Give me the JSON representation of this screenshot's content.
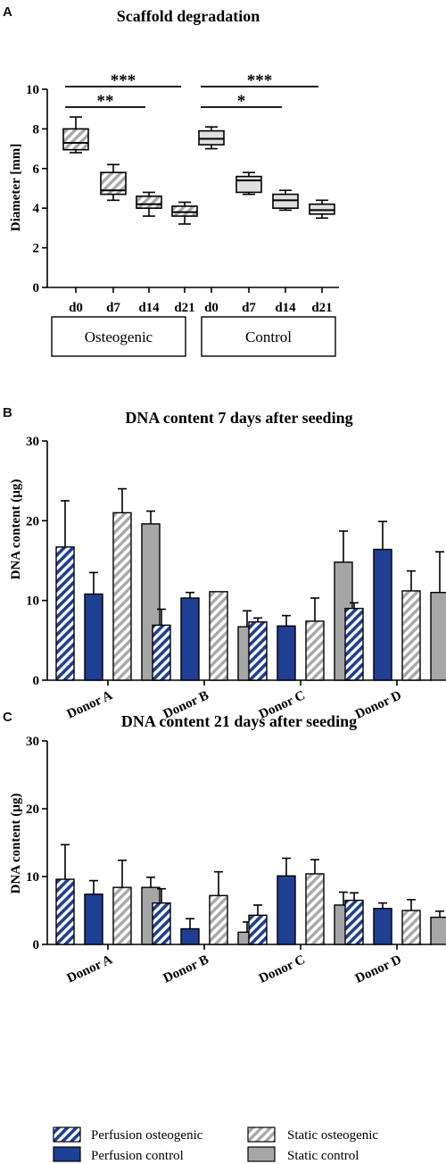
{
  "colors": {
    "perfusion": "#1f3f94",
    "static_gray": "#a6a6a6",
    "box_gray": "#a8a8a8",
    "box_light": "#e0e0e0"
  },
  "legend": {
    "items": [
      {
        "label": "Perfusion osteogenic",
        "style": "hatch-blue"
      },
      {
        "label": "Static osteogenic",
        "style": "hatch-gray"
      },
      {
        "label": "Perfusion control",
        "style": "solid-blue"
      },
      {
        "label": "Static control",
        "style": "solid-gray"
      }
    ]
  },
  "chart_data": [
    {
      "panel": "A",
      "type": "box",
      "title": "Scaffold degradation",
      "ylabel": "Diameter [mm]",
      "ylim": [
        0,
        10
      ],
      "yticks": [
        0,
        2,
        4,
        6,
        8,
        10
      ],
      "categories": [
        "d0",
        "d7",
        "d14",
        "d21",
        "d0",
        "d7",
        "d14",
        "d21"
      ],
      "groups": [
        {
          "label": "Osteogenic",
          "span": [
            0,
            3
          ]
        },
        {
          "label": "Control",
          "span": [
            4,
            7
          ]
        }
      ],
      "boxes": [
        {
          "min": 6.8,
          "q1": 6.95,
          "median": 7.3,
          "q3": 8.0,
          "max": 8.6,
          "style": "hatch"
        },
        {
          "min": 4.4,
          "q1": 4.7,
          "median": 4.9,
          "q3": 5.8,
          "max": 6.2,
          "style": "hatch"
        },
        {
          "min": 3.6,
          "q1": 4.0,
          "median": 4.2,
          "q3": 4.6,
          "max": 4.8,
          "style": "hatch"
        },
        {
          "min": 3.2,
          "q1": 3.6,
          "median": 3.8,
          "q3": 4.1,
          "max": 4.3,
          "style": "hatch"
        },
        {
          "min": 7.0,
          "q1": 7.2,
          "median": 7.5,
          "q3": 7.9,
          "max": 8.1,
          "style": "light"
        },
        {
          "min": 4.7,
          "q1": 4.8,
          "median": 5.4,
          "q3": 5.6,
          "max": 5.8,
          "style": "light"
        },
        {
          "min": 3.9,
          "q1": 4.0,
          "median": 4.4,
          "q3": 4.7,
          "max": 4.9,
          "style": "light"
        },
        {
          "min": 3.5,
          "q1": 3.7,
          "median": 3.9,
          "q3": 4.2,
          "max": 4.4,
          "style": "light"
        }
      ],
      "significance": [
        {
          "from": 0,
          "to": 3,
          "label": "***"
        },
        {
          "from": 0,
          "to": 2,
          "label": "**"
        },
        {
          "from": 4,
          "to": 7,
          "label": "***"
        },
        {
          "from": 4,
          "to": 6,
          "label": "*"
        }
      ]
    },
    {
      "panel": "B",
      "type": "bar",
      "title": "DNA content 7 days after seeding",
      "ylabel": "DNA content (µg)",
      "ylim": [
        0,
        30
      ],
      "yticks": [
        0,
        10,
        20,
        30
      ],
      "categories": [
        "Donor A",
        "Donor B",
        "Donor C",
        "Donor D"
      ],
      "series": [
        {
          "name": "Perfusion osteogenic",
          "style": "hatch-blue",
          "values": [
            16.7,
            6.9,
            7.3,
            9.0
          ],
          "errors": [
            5.8,
            2.0,
            0.5,
            0.7
          ]
        },
        {
          "name": "Perfusion control",
          "style": "solid-blue",
          "values": [
            10.8,
            10.3,
            6.8,
            16.4
          ],
          "errors": [
            2.7,
            0.7,
            1.3,
            3.5
          ]
        },
        {
          "name": "Static osteogenic",
          "style": "hatch-gray",
          "values": [
            21.0,
            11.1,
            7.4,
            11.2
          ],
          "errors": [
            3.0,
            0.0,
            2.9,
            2.5
          ]
        },
        {
          "name": "Static control",
          "style": "solid-gray",
          "values": [
            19.6,
            6.7,
            14.8,
            11.0
          ],
          "errors": [
            1.6,
            2.0,
            3.9,
            5.1
          ]
        }
      ]
    },
    {
      "panel": "C",
      "type": "bar",
      "title": "DNA content 21 days after seeding",
      "ylabel": "DNA content (µg)",
      "ylim": [
        0,
        30
      ],
      "yticks": [
        0,
        10,
        20,
        30
      ],
      "categories": [
        "Donor A",
        "Donor B",
        "Donor C",
        "Donor D"
      ],
      "series": [
        {
          "name": "Perfusion osteogenic",
          "style": "hatch-blue",
          "values": [
            9.6,
            6.1,
            4.3,
            6.5
          ],
          "errors": [
            5.1,
            2.1,
            1.5,
            1.1
          ]
        },
        {
          "name": "Perfusion control",
          "style": "solid-blue",
          "values": [
            7.4,
            2.3,
            10.1,
            5.3
          ],
          "errors": [
            2.0,
            1.5,
            2.6,
            0.8
          ]
        },
        {
          "name": "Static osteogenic",
          "style": "hatch-gray",
          "values": [
            8.4,
            7.2,
            10.4,
            5.0
          ],
          "errors": [
            4.0,
            3.5,
            2.1,
            1.6
          ]
        },
        {
          "name": "Static control",
          "style": "solid-gray",
          "values": [
            8.4,
            1.8,
            5.8,
            4.0
          ],
          "errors": [
            1.5,
            1.5,
            1.9,
            0.9
          ]
        }
      ]
    }
  ]
}
